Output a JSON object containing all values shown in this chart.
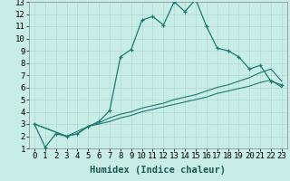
{
  "xlabel": "Humidex (Indice chaleur)",
  "bg_color": "#c8ece6",
  "line_color": "#1a7a6e",
  "grid_color": "#b0d8d2",
  "xlim": [
    -0.5,
    23.5
  ],
  "ylim": [
    1,
    13
  ],
  "xticks": [
    0,
    1,
    2,
    3,
    4,
    5,
    6,
    7,
    8,
    9,
    10,
    11,
    12,
    13,
    14,
    15,
    16,
    17,
    18,
    19,
    20,
    21,
    22,
    23
  ],
  "yticks": [
    1,
    2,
    3,
    4,
    5,
    6,
    7,
    8,
    9,
    10,
    11,
    12,
    13
  ],
  "curve1_x": [
    0,
    1,
    2,
    3,
    4,
    5,
    6,
    7,
    8,
    9,
    10,
    11,
    12,
    13,
    14,
    15,
    16,
    17,
    18,
    19,
    20,
    21,
    22,
    23
  ],
  "curve1_y": [
    3.0,
    1.1,
    2.2,
    2.0,
    2.2,
    2.8,
    3.2,
    4.1,
    8.5,
    9.1,
    11.5,
    11.8,
    11.1,
    13.0,
    12.2,
    13.2,
    11.0,
    9.2,
    9.0,
    8.5,
    7.5,
    7.8,
    6.5,
    6.2
  ],
  "curve2_x": [
    0,
    3,
    4,
    5,
    6,
    7,
    8,
    9,
    10,
    11,
    12,
    13,
    14,
    15,
    16,
    17,
    18,
    19,
    20,
    21,
    22,
    23
  ],
  "curve2_y": [
    3.0,
    2.0,
    2.2,
    2.8,
    3.1,
    3.5,
    3.8,
    4.0,
    4.3,
    4.5,
    4.7,
    5.0,
    5.2,
    5.4,
    5.7,
    6.0,
    6.2,
    6.5,
    6.8,
    7.2,
    7.5,
    6.5
  ],
  "curve3_x": [
    0,
    3,
    5,
    6,
    7,
    8,
    9,
    10,
    11,
    12,
    13,
    14,
    15,
    16,
    17,
    18,
    19,
    20,
    21,
    22,
    23
  ],
  "curve3_y": [
    3.0,
    2.0,
    2.8,
    3.0,
    3.2,
    3.5,
    3.7,
    4.0,
    4.2,
    4.4,
    4.6,
    4.8,
    5.0,
    5.2,
    5.5,
    5.7,
    5.9,
    6.1,
    6.4,
    6.6,
    6.0
  ],
  "tick_fontsize": 6.5,
  "label_fontsize": 7.5
}
